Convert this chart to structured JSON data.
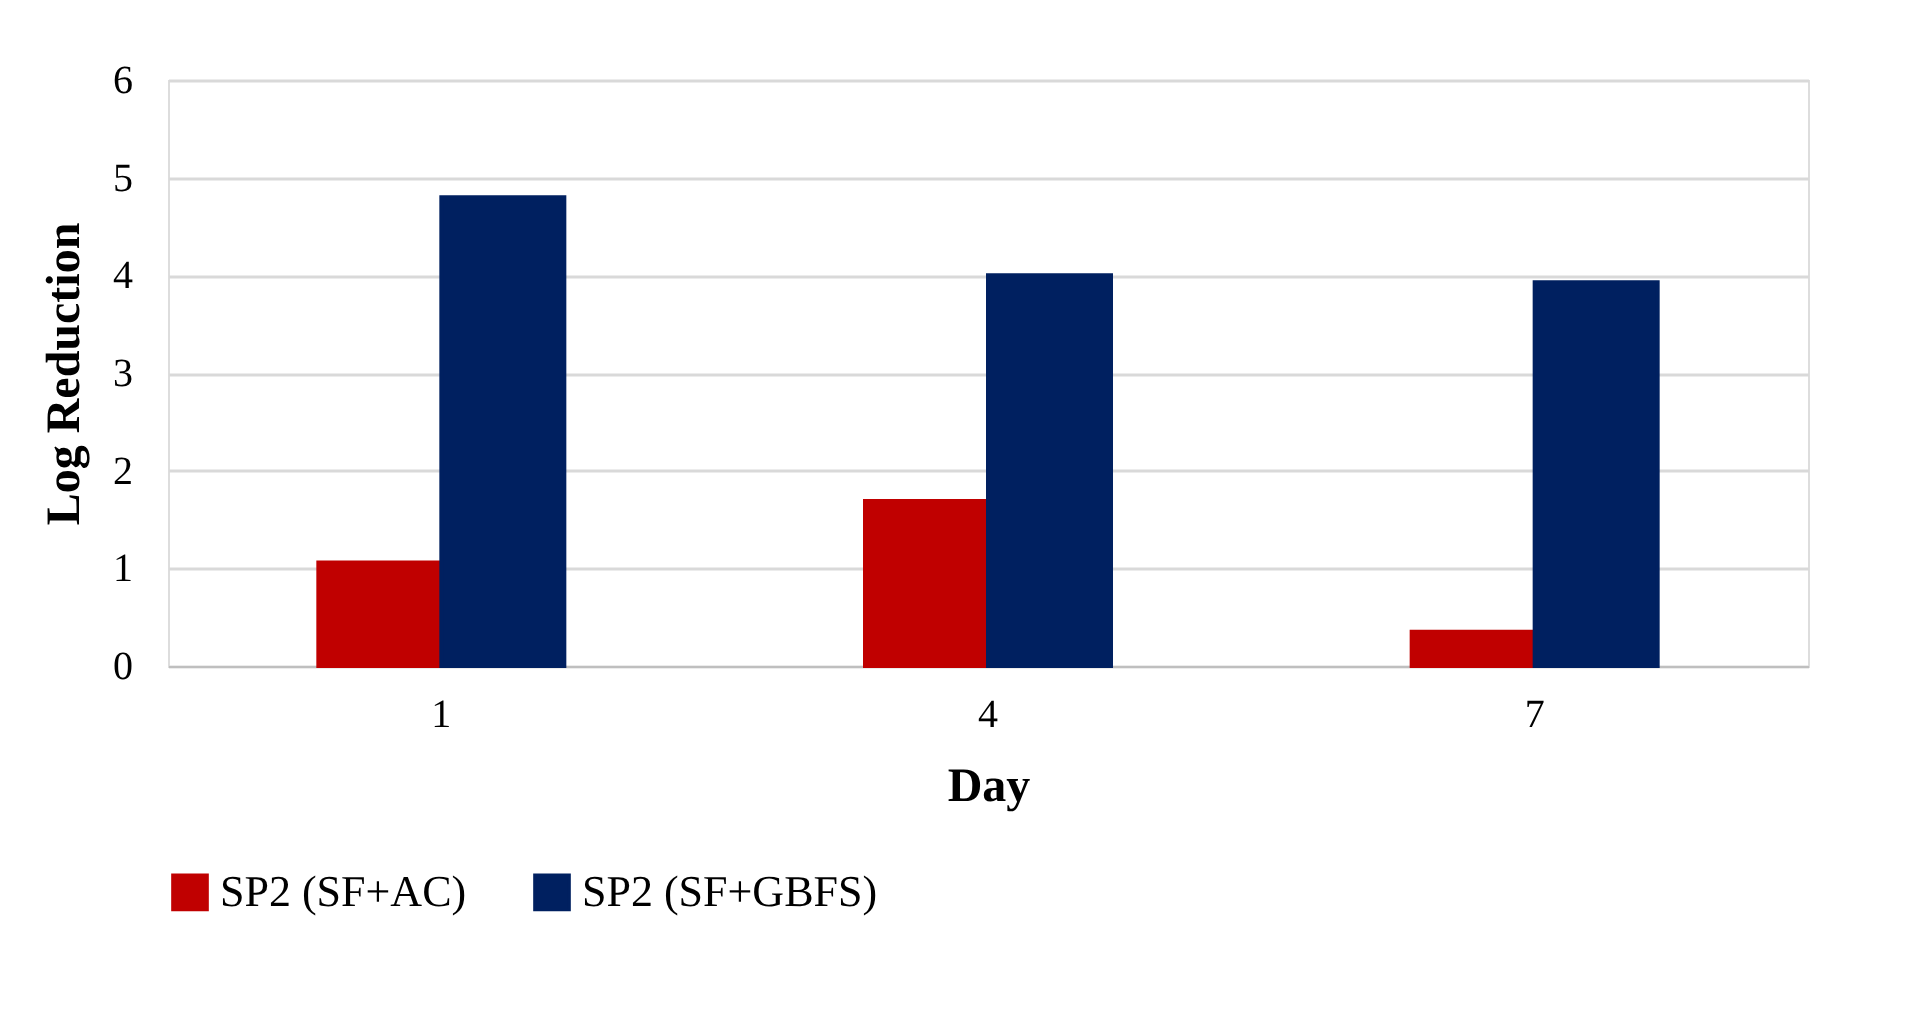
{
  "chart_data": {
    "type": "bar",
    "xlabel": "Day",
    "ylabel": "Log Reduction",
    "categories": [
      "1",
      "4",
      "7"
    ],
    "series": [
      {
        "name": "SP2 (SF+AC)",
        "color": "#c00000",
        "values": [
          1.06,
          1.69,
          0.35
        ]
      },
      {
        "name": "SP2 (SF+GBFS)",
        "color": "#002060",
        "values": [
          4.8,
          4.0,
          3.93
        ]
      }
    ],
    "ylim": [
      0,
      6
    ],
    "yticks": [
      0,
      1,
      2,
      3,
      4,
      5,
      6
    ],
    "grid": "y",
    "legend": "bottom"
  }
}
